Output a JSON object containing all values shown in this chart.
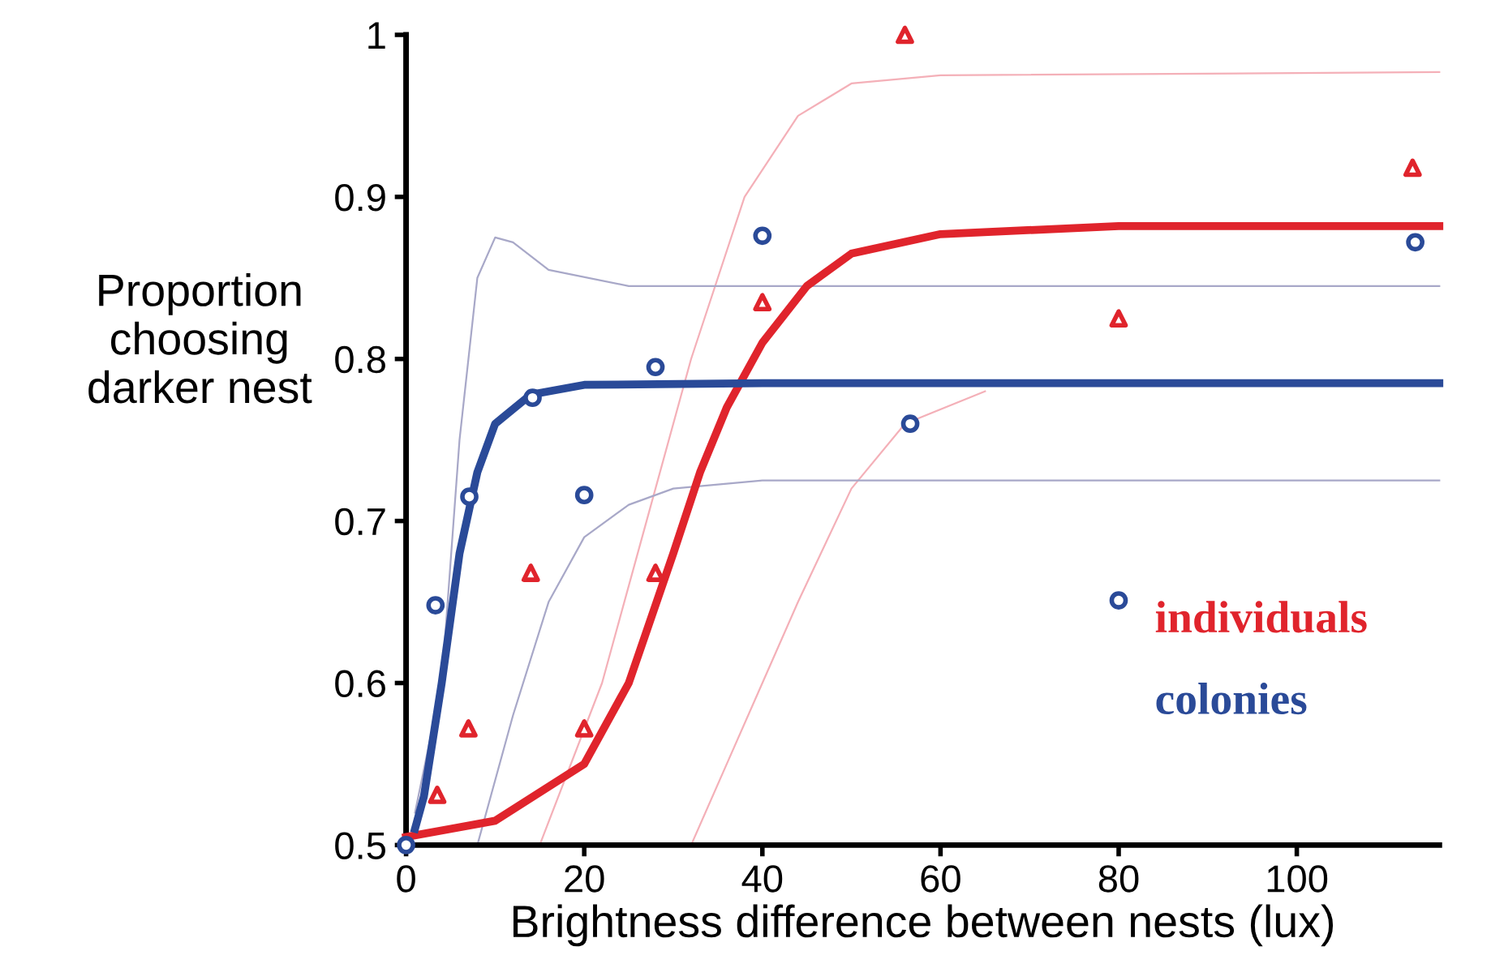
{
  "chart_data": {
    "type": "scatter",
    "xlabel": "Brightness difference between nests (lux)",
    "ylabel": "Proportion\nchoosing\ndarker nest",
    "xlim": [
      0,
      116
    ],
    "ylim": [
      0.5,
      1
    ],
    "xticks": [
      0,
      20,
      40,
      60,
      80,
      100
    ],
    "yticks": [
      0.5,
      0.6,
      0.7,
      0.8,
      0.9,
      1
    ],
    "grid": false,
    "legend": "bottom right",
    "series": [
      {
        "type": "line",
        "color": "#f4b0b8",
        "x": [
          15,
          22,
          27,
          32,
          38,
          44,
          50,
          60,
          116
        ],
        "values": [
          0.5,
          0.6,
          0.7,
          0.8,
          0.9,
          0.95,
          0.97,
          0.975,
          0.977
        ]
      },
      {
        "type": "line",
        "color": "#f4b0b8",
        "x": [
          32,
          36,
          40,
          44,
          50,
          56,
          65
        ],
        "values": [
          0.5,
          0.55,
          0.6,
          0.65,
          0.72,
          0.76,
          0.78
        ]
      },
      {
        "type": "line",
        "color": "#a8a8c8",
        "x": [
          1,
          4,
          6,
          8,
          10,
          12,
          16,
          25,
          116
        ],
        "values": [
          0.52,
          0.6,
          0.75,
          0.85,
          0.875,
          0.872,
          0.855,
          0.845,
          0.845
        ]
      },
      {
        "type": "line",
        "color": "#a8a8c8",
        "x": [
          8,
          12,
          16,
          20,
          25,
          30,
          40,
          116
        ],
        "values": [
          0.5,
          0.58,
          0.65,
          0.69,
          0.71,
          0.72,
          0.725,
          0.725
        ]
      },
      {
        "type": "line",
        "name": "individuals",
        "color": "#e0242c",
        "line_style": "solid",
        "x": [
          0,
          10,
          20,
          25,
          30,
          33,
          36,
          40,
          45,
          50,
          60,
          80,
          116
        ],
        "values": [
          0.505,
          0.515,
          0.55,
          0.6,
          0.68,
          0.73,
          0.77,
          0.81,
          0.845,
          0.865,
          0.877,
          0.882,
          0.882
        ]
      },
      {
        "type": "line",
        "name": "colonies",
        "color": "#2a4a98",
        "line_style": "solid",
        "x": [
          1,
          2,
          4,
          6,
          8,
          10,
          14,
          20,
          40,
          116
        ],
        "values": [
          0.51,
          0.53,
          0.6,
          0.68,
          0.73,
          0.76,
          0.778,
          0.784,
          0.785,
          0.785
        ]
      },
      {
        "marker": "triangle",
        "color": "#e0242c",
        "x": [
          3.5,
          7,
          14,
          20,
          28,
          40,
          56,
          80,
          113
        ],
        "values": [
          0.531,
          0.572,
          0.668,
          0.572,
          0.668,
          0.835,
          1.0,
          0.825,
          0.918
        ]
      },
      {
        "marker": "circle",
        "color": "#2a4a98",
        "x": [
          0,
          3.3,
          7.1,
          14.2,
          20,
          28,
          40,
          56.6,
          80,
          113.3
        ],
        "values": [
          0.5,
          0.648,
          0.715,
          0.776,
          0.716,
          0.795,
          0.876,
          0.76,
          0.651,
          0.872
        ]
      }
    ]
  }
}
